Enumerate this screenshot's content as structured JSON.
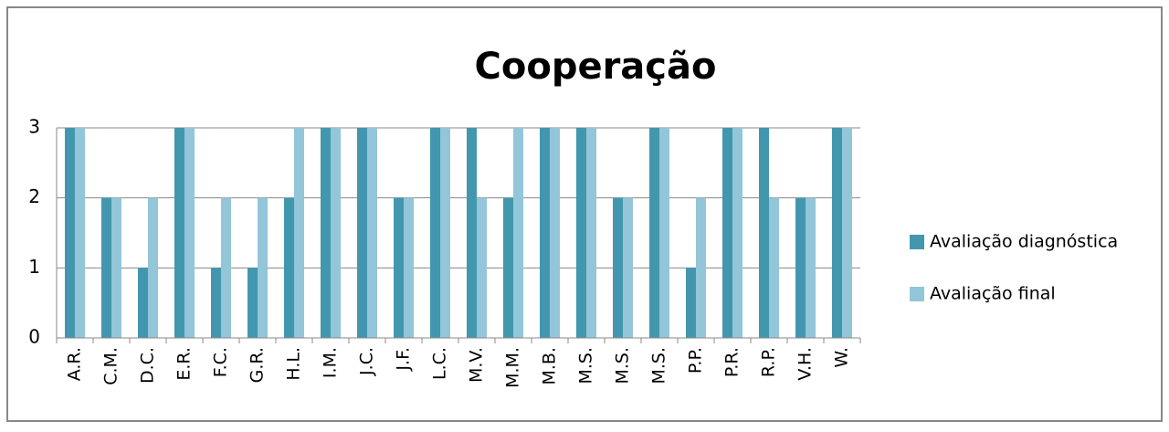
{
  "chart_data": {
    "type": "bar",
    "title": "Cooperação",
    "categories": [
      "A.R.",
      "C.M.",
      "D.C.",
      "E.R.",
      "F.C.",
      "G.R.",
      "H.L.",
      "I.M.",
      "J.C.",
      "J.F.",
      "L.C.",
      "M.V.",
      "M.M.",
      "M.B.",
      "M.S.",
      "M.S.",
      "M.S.",
      "P.P.",
      "P.R.",
      "R.P.",
      "V.H.",
      "W."
    ],
    "series": [
      {
        "name": "Avaliação diagnóstica",
        "color": "#4297ae",
        "values": [
          3,
          2,
          1,
          3,
          1,
          1,
          2,
          3,
          3,
          2,
          3,
          3,
          2,
          3,
          3,
          2,
          3,
          1,
          3,
          3,
          2,
          3
        ]
      },
      {
        "name": "Avaliação final",
        "color": "#92c6d8",
        "values": [
          3,
          2,
          2,
          3,
          2,
          2,
          3,
          3,
          3,
          2,
          3,
          2,
          3,
          3,
          3,
          2,
          3,
          2,
          3,
          2,
          2,
          3
        ]
      }
    ],
    "ylim": [
      0,
      3
    ],
    "yticks": [
      0,
      1,
      2,
      3
    ],
    "grid": true,
    "legend": "right"
  }
}
